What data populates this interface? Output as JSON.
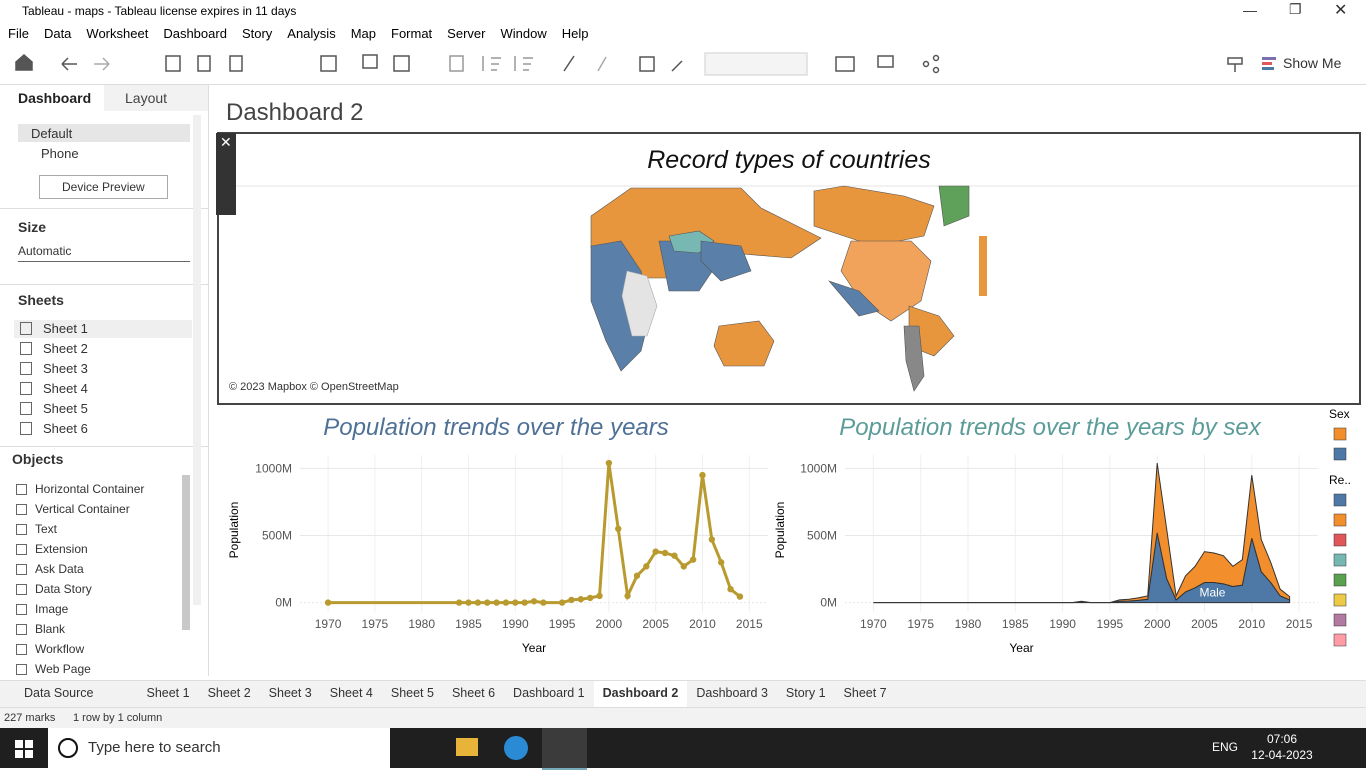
{
  "window": {
    "title": "Tableau - maps - Tableau license expires in 11 days"
  },
  "menu": [
    "File",
    "Data",
    "Worksheet",
    "Dashboard",
    "Story",
    "Analysis",
    "Map",
    "Format",
    "Server",
    "Window",
    "Help"
  ],
  "toolbar": {
    "show_me": "Show Me"
  },
  "sidebar": {
    "tabs": [
      "Dashboard",
      "Layout"
    ],
    "devices": [
      "Default",
      "Phone"
    ],
    "device_preview": "Device Preview",
    "size_heading": "Size",
    "size_value": "Automatic",
    "sheets_heading": "Sheets",
    "sheets": [
      "Sheet 1",
      "Sheet 2",
      "Sheet 3",
      "Sheet 4",
      "Sheet 5",
      "Sheet 6"
    ],
    "objects_heading": "Objects",
    "objects": [
      "Horizontal Container",
      "Vertical Container",
      "Text",
      "Extension",
      "Ask Data",
      "Data Story",
      "Image",
      "Blank",
      "Workflow",
      "Web Page"
    ]
  },
  "dashboard": {
    "title": "Dashboard 2"
  },
  "map": {
    "title": "Record types of countries",
    "attribution": "© 2023 Mapbox © OpenStreetMap"
  },
  "chart_data": [
    {
      "type": "line",
      "title": "Population  trends over the years",
      "title_color": "#4f7196",
      "x_label": "Year",
      "y_label": "Population",
      "x": [
        1970,
        1984,
        1985,
        1986,
        1987,
        1988,
        1989,
        1990,
        1991,
        1992,
        1993,
        1995,
        1996,
        1997,
        1998,
        1999,
        2000,
        2001,
        2002,
        2003,
        2004,
        2005,
        2006,
        2007,
        2008,
        2009,
        2010,
        2011,
        2012,
        2013,
        2014
      ],
      "values": [
        0,
        0,
        0,
        0,
        0,
        0,
        0,
        0,
        0,
        10,
        0,
        0,
        20,
        25,
        35,
        50,
        1040,
        550,
        50,
        200,
        270,
        380,
        370,
        350,
        270,
        320,
        950,
        470,
        300,
        100,
        45
      ],
      "color": "#b89a2e",
      "xlim": [
        1967,
        2017
      ],
      "ylim": [
        -70,
        1100
      ],
      "xticks": [
        1970,
        1975,
        1980,
        1985,
        1990,
        1995,
        2000,
        2005,
        2010,
        2015
      ],
      "yticks": [
        {
          "value": 0,
          "label": "0M"
        },
        {
          "value": 500,
          "label": "500M"
        },
        {
          "value": 1000,
          "label": "1000M"
        }
      ],
      "grid": true
    },
    {
      "type": "area",
      "stacked": true,
      "title": "Population trends over the years by sex",
      "title_color": "#5b9c99",
      "x_label": "Year",
      "y_label": "Population",
      "x": [
        1970,
        1984,
        1985,
        1986,
        1987,
        1988,
        1989,
        1990,
        1991,
        1992,
        1993,
        1995,
        1996,
        1997,
        1998,
        1999,
        2000,
        2001,
        2002,
        2003,
        2004,
        2005,
        2006,
        2007,
        2008,
        2009,
        2010,
        2011,
        2012,
        2013,
        2014
      ],
      "series": [
        {
          "name": "Male",
          "color": "#4e79a7",
          "values": [
            0,
            0,
            0,
            0,
            0,
            0,
            0,
            0,
            0,
            5,
            0,
            0,
            10,
            12,
            17,
            25,
            520,
            180,
            20,
            80,
            110,
            150,
            150,
            140,
            120,
            130,
            480,
            230,
            150,
            50,
            20
          ]
        },
        {
          "color": "#f28e2b",
          "values": [
            0,
            0,
            0,
            0,
            0,
            0,
            0,
            0,
            0,
            5,
            0,
            0,
            10,
            13,
            18,
            25,
            520,
            370,
            30,
            120,
            160,
            230,
            220,
            210,
            150,
            190,
            470,
            240,
            150,
            50,
            25
          ]
        }
      ],
      "xlim": [
        1967,
        2017
      ],
      "ylim": [
        -70,
        1100
      ],
      "xticks": [
        1970,
        1975,
        1980,
        1985,
        1990,
        1995,
        2000,
        2005,
        2010,
        2015
      ],
      "yticks": [
        {
          "value": 0,
          "label": "0M"
        },
        {
          "value": 500,
          "label": "500M"
        },
        {
          "value": 1000,
          "label": "1000M"
        }
      ],
      "grid": true,
      "legends": [
        {
          "title": "Sex",
          "colors": [
            "#f28e2b",
            "#4e79a7"
          ]
        },
        {
          "title": "Re..",
          "colors": [
            "#4e79a7",
            "#f28e2b",
            "#e15759",
            "#76b7b2",
            "#59a14f",
            "#edc948",
            "#b07aa1",
            "#ff9da7"
          ]
        }
      ]
    }
  ],
  "tabs": {
    "items": [
      "Data Source",
      "Sheet 1",
      "Sheet 2",
      "Sheet 3",
      "Sheet 4",
      "Sheet 5",
      "Sheet 6",
      "Dashboard 1",
      "Dashboard 2",
      "Dashboard 3",
      "Story 1",
      "Sheet 7"
    ],
    "active": 8
  },
  "status": {
    "marks": "227 marks",
    "layout": "1 row by 1 column"
  },
  "taskbar": {
    "search": "Type here to search",
    "lang": "ENG",
    "time": "07:06",
    "date": "12-04-2023"
  }
}
